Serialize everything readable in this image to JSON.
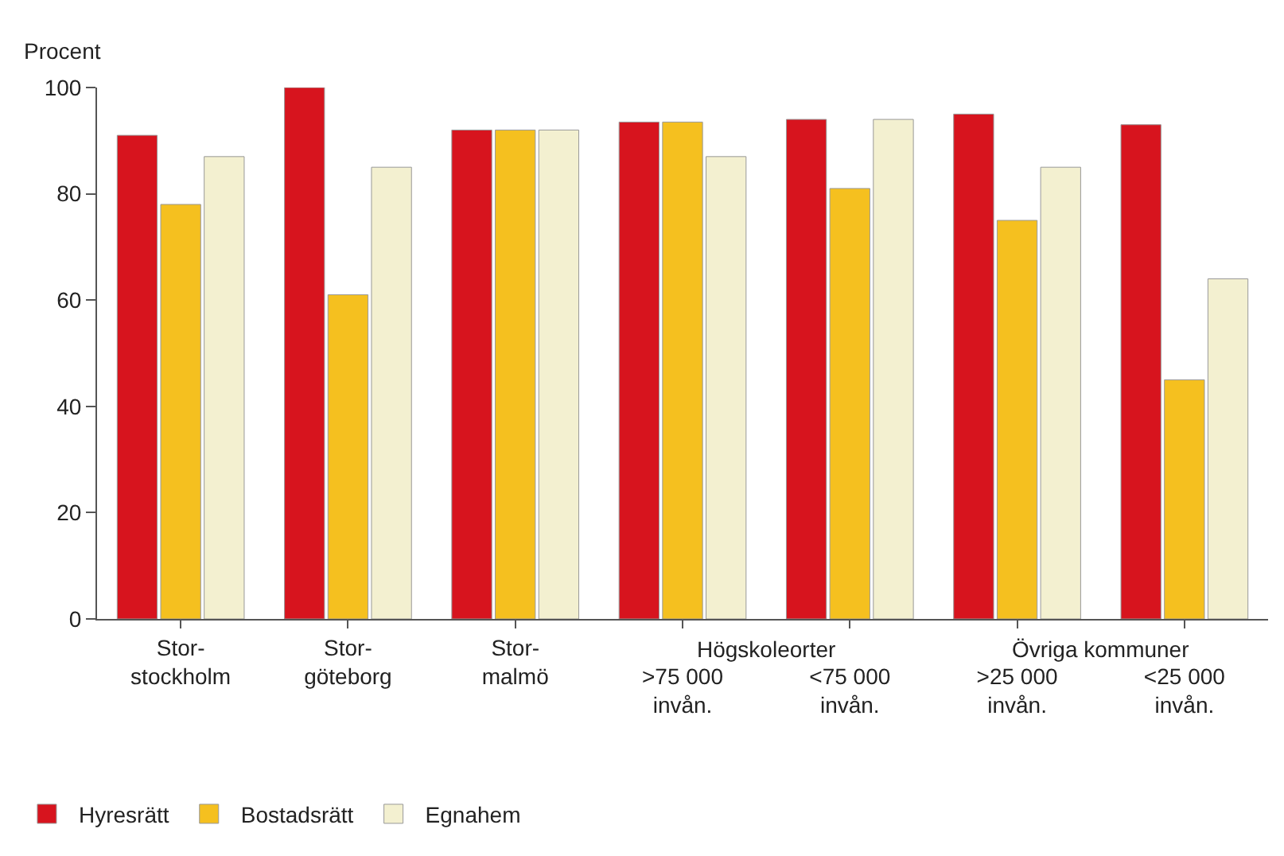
{
  "chart_data": {
    "type": "bar",
    "ylabel": "Procent",
    "categories": [
      "Stor-\nstockholm",
      "Stor-\ngöteborg",
      "Stor-\nmalmö",
      ">75 000\ninvån.",
      "<75 000\ninvån.",
      ">25 000\ninvån.",
      "<25 000\ninvån."
    ],
    "series": [
      {
        "name": "Hyresrätt",
        "color": "#d7141e",
        "values": [
          91,
          100,
          92,
          93.5,
          94,
          95,
          93
        ]
      },
      {
        "name": "Bostadsrätt",
        "color": "#f5c01f",
        "values": [
          78,
          61,
          92,
          93.5,
          81,
          75,
          45
        ]
      },
      {
        "name": "Egnahem",
        "color": "#f3f0d0",
        "values": [
          87,
          85,
          92,
          87,
          94,
          85,
          64
        ]
      }
    ],
    "annotations": [
      "Högskoleorter",
      "Övriga kommuner"
    ],
    "ylim": [
      0,
      100
    ],
    "yticks": [
      0,
      20,
      40,
      60,
      80,
      100
    ],
    "legend": "bottom left"
  }
}
